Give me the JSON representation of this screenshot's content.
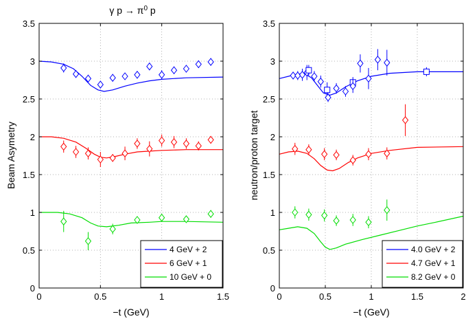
{
  "chart_data": [
    {
      "type": "line",
      "title": "γ p → π⁰ p",
      "title_parts": {
        "pre": "γ p → π",
        "sup": "0",
        "post": " p"
      },
      "xlabel": "−t (GeV)",
      "ylabel": "Beam Asymetry",
      "xlim": [
        0,
        1.5
      ],
      "ylim": [
        0,
        3.5
      ],
      "xticks": [
        0,
        0.5,
        1,
        1.5
      ],
      "xtick_labels": [
        "0",
        "0.5",
        "1",
        "1.5"
      ],
      "yticks": [
        0,
        0.5,
        1,
        1.5,
        2,
        2.5,
        3,
        3.5
      ],
      "ytick_labels": [
        "0",
        "0.5",
        "1",
        "1.5",
        "2",
        "2.5",
        "3",
        "3.5"
      ],
      "grid": true,
      "legend_position": "bottom-right",
      "series": [
        {
          "name": "4 GeV + 2",
          "color": "#0000ff",
          "curve": [
            [
              0,
              3.0
            ],
            [
              0.1,
              2.99
            ],
            [
              0.2,
              2.96
            ],
            [
              0.28,
              2.9
            ],
            [
              0.35,
              2.8
            ],
            [
              0.42,
              2.68
            ],
            [
              0.48,
              2.62
            ],
            [
              0.53,
              2.6
            ],
            [
              0.6,
              2.62
            ],
            [
              0.7,
              2.67
            ],
            [
              0.8,
              2.71
            ],
            [
              0.9,
              2.74
            ],
            [
              1.0,
              2.76
            ],
            [
              1.2,
              2.78
            ],
            [
              1.5,
              2.79
            ]
          ],
          "points": [
            {
              "x": 0.2,
              "y": 2.91,
              "err": 0.06,
              "marker": "diamond"
            },
            {
              "x": 0.3,
              "y": 2.83,
              "err": 0.05,
              "marker": "diamond"
            },
            {
              "x": 0.4,
              "y": 2.77,
              "err": 0.05,
              "marker": "diamond"
            },
            {
              "x": 0.5,
              "y": 2.69,
              "err": 0.05,
              "marker": "diamond"
            },
            {
              "x": 0.6,
              "y": 2.78,
              "err": 0.05,
              "marker": "diamond"
            },
            {
              "x": 0.7,
              "y": 2.8,
              "err": 0.04,
              "marker": "diamond"
            },
            {
              "x": 0.8,
              "y": 2.82,
              "err": 0.05,
              "marker": "diamond"
            },
            {
              "x": 0.9,
              "y": 2.93,
              "err": 0.05,
              "marker": "diamond"
            },
            {
              "x": 1.0,
              "y": 2.82,
              "err": 0.06,
              "marker": "diamond"
            },
            {
              "x": 1.1,
              "y": 2.88,
              "err": 0.05,
              "marker": "diamond"
            },
            {
              "x": 1.2,
              "y": 2.9,
              "err": 0.05,
              "marker": "diamond"
            },
            {
              "x": 1.3,
              "y": 2.96,
              "err": 0.05,
              "marker": "diamond"
            },
            {
              "x": 1.4,
              "y": 2.99,
              "err": 0.05,
              "marker": "diamond"
            }
          ]
        },
        {
          "name": "6 GeV + 1",
          "color": "#ff0000",
          "curve": [
            [
              0,
              2.0
            ],
            [
              0.1,
              2.0
            ],
            [
              0.2,
              1.98
            ],
            [
              0.3,
              1.93
            ],
            [
              0.38,
              1.85
            ],
            [
              0.45,
              1.77
            ],
            [
              0.5,
              1.73
            ],
            [
              0.55,
              1.72
            ],
            [
              0.62,
              1.74
            ],
            [
              0.7,
              1.77
            ],
            [
              0.8,
              1.8
            ],
            [
              0.9,
              1.81
            ],
            [
              1.0,
              1.82
            ],
            [
              1.2,
              1.83
            ],
            [
              1.5,
              1.83
            ]
          ],
          "points": [
            {
              "x": 0.2,
              "y": 1.87,
              "err": 0.08,
              "marker": "diamond"
            },
            {
              "x": 0.3,
              "y": 1.8,
              "err": 0.08,
              "marker": "diamond"
            },
            {
              "x": 0.4,
              "y": 1.78,
              "err": 0.08,
              "marker": "diamond"
            },
            {
              "x": 0.5,
              "y": 1.7,
              "err": 0.1,
              "marker": "diamond"
            },
            {
              "x": 0.6,
              "y": 1.72,
              "err": 0.05,
              "marker": "diamond"
            },
            {
              "x": 0.7,
              "y": 1.78,
              "err": 0.09,
              "marker": "diamond"
            },
            {
              "x": 0.8,
              "y": 1.91,
              "err": 0.07,
              "marker": "diamond"
            },
            {
              "x": 0.9,
              "y": 1.84,
              "err": 0.1,
              "marker": "diamond"
            },
            {
              "x": 1.0,
              "y": 1.95,
              "err": 0.08,
              "marker": "diamond"
            },
            {
              "x": 1.1,
              "y": 1.93,
              "err": 0.08,
              "marker": "diamond"
            },
            {
              "x": 1.2,
              "y": 1.91,
              "err": 0.07,
              "marker": "diamond"
            },
            {
              "x": 1.3,
              "y": 1.88,
              "err": 0.06,
              "marker": "diamond"
            },
            {
              "x": 1.4,
              "y": 1.96,
              "err": 0.05,
              "marker": "diamond"
            }
          ]
        },
        {
          "name": "10 GeV + 0",
          "color": "#00dd00",
          "curve": [
            [
              0,
              1.0
            ],
            [
              0.15,
              1.0
            ],
            [
              0.25,
              0.98
            ],
            [
              0.35,
              0.93
            ],
            [
              0.42,
              0.86
            ],
            [
              0.48,
              0.82
            ],
            [
              0.55,
              0.81
            ],
            [
              0.65,
              0.83
            ],
            [
              0.75,
              0.86
            ],
            [
              0.9,
              0.87
            ],
            [
              1.0,
              0.88
            ],
            [
              1.2,
              0.88
            ],
            [
              1.5,
              0.87
            ]
          ],
          "points": [
            {
              "x": 0.2,
              "y": 0.88,
              "err": 0.14,
              "marker": "diamond"
            },
            {
              "x": 0.4,
              "y": 0.62,
              "err": 0.12,
              "marker": "diamond"
            },
            {
              "x": 0.6,
              "y": 0.78,
              "err": 0.07,
              "marker": "diamond"
            },
            {
              "x": 0.8,
              "y": 0.9,
              "err": 0.05,
              "marker": "diamond"
            },
            {
              "x": 1.0,
              "y": 0.93,
              "err": 0.05,
              "marker": "diamond"
            },
            {
              "x": 1.2,
              "y": 0.91,
              "err": 0.04,
              "marker": "diamond"
            },
            {
              "x": 1.4,
              "y": 0.98,
              "err": 0.05,
              "marker": "diamond"
            }
          ]
        }
      ]
    },
    {
      "type": "line",
      "title": "",
      "xlabel": "−t (GeV)",
      "ylabel": "neutron/proton target",
      "xlim": [
        0,
        2
      ],
      "ylim": [
        0,
        3.5
      ],
      "xticks": [
        0,
        0.5,
        1,
        1.5,
        2
      ],
      "xtick_labels": [
        "0",
        "0.5",
        "1",
        "1.5",
        "2"
      ],
      "yticks": [
        0,
        0.5,
        1,
        1.5,
        2,
        2.5,
        3,
        3.5
      ],
      "ytick_labels": [
        "0",
        "0.5",
        "1",
        "1.5",
        "2",
        "2.5",
        "3",
        "3.5"
      ],
      "grid": true,
      "legend_position": "bottom-right",
      "series": [
        {
          "name": "4.0 GeV + 2",
          "color": "#0000ff",
          "curve": [
            [
              0,
              2.77
            ],
            [
              0.1,
              2.8
            ],
            [
              0.2,
              2.83
            ],
            [
              0.28,
              2.83
            ],
            [
              0.35,
              2.78
            ],
            [
              0.42,
              2.67
            ],
            [
              0.48,
              2.58
            ],
            [
              0.55,
              2.55
            ],
            [
              0.62,
              2.58
            ],
            [
              0.72,
              2.66
            ],
            [
              0.85,
              2.74
            ],
            [
              1.0,
              2.8
            ],
            [
              1.2,
              2.84
            ],
            [
              1.5,
              2.86
            ],
            [
              2.0,
              2.86
            ]
          ],
          "points": [
            {
              "x": 0.15,
              "y": 2.81,
              "err": 0.05,
              "marker": "diamond"
            },
            {
              "x": 0.2,
              "y": 2.81,
              "err": 0.06,
              "marker": "diamond"
            },
            {
              "x": 0.25,
              "y": 2.82,
              "err": 0.08,
              "marker": "diamond"
            },
            {
              "x": 0.3,
              "y": 2.85,
              "err": 0.1,
              "marker": "diamond"
            },
            {
              "x": 0.32,
              "y": 2.88,
              "err": 0.07,
              "marker": "square"
            },
            {
              "x": 0.38,
              "y": 2.8,
              "err": 0.07,
              "marker": "diamond"
            },
            {
              "x": 0.45,
              "y": 2.73,
              "err": 0.08,
              "marker": "diamond"
            },
            {
              "x": 0.52,
              "y": 2.62,
              "err": 0.1,
              "marker": "square"
            },
            {
              "x": 0.53,
              "y": 2.52,
              "err": 0.06,
              "marker": "diamond"
            },
            {
              "x": 0.62,
              "y": 2.64,
              "err": 0.07,
              "marker": "diamond"
            },
            {
              "x": 0.72,
              "y": 2.6,
              "err": 0.07,
              "marker": "diamond"
            },
            {
              "x": 0.8,
              "y": 2.72,
              "err": 0.07,
              "marker": "square"
            },
            {
              "x": 0.8,
              "y": 2.67,
              "err": 0.09,
              "marker": "diamond"
            },
            {
              "x": 0.88,
              "y": 2.97,
              "err": 0.12,
              "marker": "diamond"
            },
            {
              "x": 0.97,
              "y": 2.77,
              "err": 0.14,
              "marker": "diamond"
            },
            {
              "x": 1.07,
              "y": 3.02,
              "err": 0.14,
              "marker": "diamond"
            },
            {
              "x": 1.17,
              "y": 2.98,
              "err": 0.17,
              "marker": "diamond"
            },
            {
              "x": 1.6,
              "y": 2.86,
              "err": 0.06,
              "marker": "square"
            }
          ]
        },
        {
          "name": "4.7 GeV + 1",
          "color": "#ff0000",
          "curve": [
            [
              0,
              1.77
            ],
            [
              0.1,
              1.8
            ],
            [
              0.2,
              1.81
            ],
            [
              0.3,
              1.78
            ],
            [
              0.38,
              1.71
            ],
            [
              0.45,
              1.62
            ],
            [
              0.52,
              1.56
            ],
            [
              0.58,
              1.55
            ],
            [
              0.65,
              1.58
            ],
            [
              0.75,
              1.66
            ],
            [
              0.85,
              1.72
            ],
            [
              1.0,
              1.78
            ],
            [
              1.2,
              1.82
            ],
            [
              1.5,
              1.86
            ],
            [
              2.0,
              1.87
            ]
          ],
          "points": [
            {
              "x": 0.17,
              "y": 1.84,
              "err": 0.08,
              "marker": "diamond"
            },
            {
              "x": 0.32,
              "y": 1.83,
              "err": 0.07,
              "marker": "diamond"
            },
            {
              "x": 0.49,
              "y": 1.77,
              "err": 0.08,
              "marker": "diamond"
            },
            {
              "x": 0.62,
              "y": 1.76,
              "err": 0.07,
              "marker": "diamond"
            },
            {
              "x": 0.8,
              "y": 1.69,
              "err": 0.07,
              "marker": "diamond"
            },
            {
              "x": 0.97,
              "y": 1.77,
              "err": 0.08,
              "marker": "diamond"
            },
            {
              "x": 1.17,
              "y": 1.78,
              "err": 0.08,
              "marker": "diamond"
            },
            {
              "x": 1.37,
              "y": 2.22,
              "err": 0.21,
              "marker": "diamond"
            }
          ]
        },
        {
          "name": "8.2 GeV + 0",
          "color": "#00dd00",
          "curve": [
            [
              0,
              0.77
            ],
            [
              0.1,
              0.79
            ],
            [
              0.2,
              0.81
            ],
            [
              0.3,
              0.79
            ],
            [
              0.38,
              0.72
            ],
            [
              0.45,
              0.61
            ],
            [
              0.5,
              0.54
            ],
            [
              0.55,
              0.51
            ],
            [
              0.62,
              0.53
            ],
            [
              0.72,
              0.58
            ],
            [
              0.9,
              0.64
            ],
            [
              1.1,
              0.7
            ],
            [
              1.3,
              0.76
            ],
            [
              1.5,
              0.82
            ],
            [
              1.7,
              0.87
            ],
            [
              2.0,
              0.95
            ]
          ],
          "points": [
            {
              "x": 0.17,
              "y": 1.0,
              "err": 0.08,
              "marker": "diamond"
            },
            {
              "x": 0.32,
              "y": 0.97,
              "err": 0.08,
              "marker": "diamond"
            },
            {
              "x": 0.49,
              "y": 0.96,
              "err": 0.08,
              "marker": "diamond"
            },
            {
              "x": 0.62,
              "y": 0.89,
              "err": 0.07,
              "marker": "diamond"
            },
            {
              "x": 0.8,
              "y": 0.9,
              "err": 0.08,
              "marker": "diamond"
            },
            {
              "x": 0.97,
              "y": 0.87,
              "err": 0.08,
              "marker": "diamond"
            },
            {
              "x": 1.17,
              "y": 1.03,
              "err": 0.14,
              "marker": "diamond"
            }
          ]
        }
      ]
    }
  ]
}
